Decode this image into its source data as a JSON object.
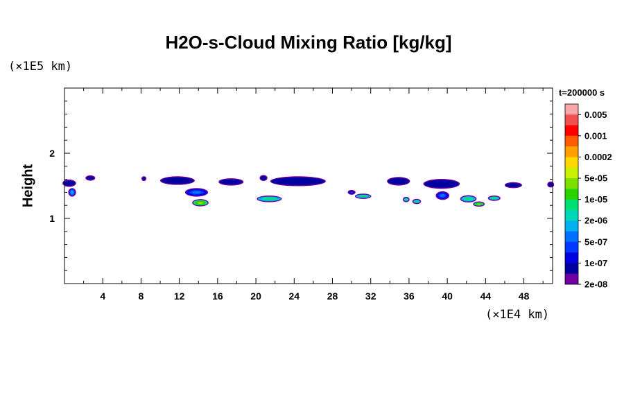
{
  "chart_data": {
    "type": "heatmap",
    "title": "H2O-s-Cloud Mixing Ratio [kg/kg]",
    "ylabel": "Height",
    "xlabel": "",
    "x_scale_label": "(×1E4 km)",
    "y_scale_label": "(×1E5 km)",
    "time_label": "t=200000 s",
    "xlim": [
      0,
      51
    ],
    "ylim": [
      0,
      3
    ],
    "x_ticks": [
      "4",
      "8",
      "12",
      "16",
      "20",
      "24",
      "28",
      "32",
      "36",
      "40",
      "44",
      "48"
    ],
    "y_ticks": [
      "1",
      "2"
    ],
    "colorbar": {
      "labels": [
        "0.005",
        "0.001",
        "0.0002",
        "5e-05",
        "1e-05",
        "2e-06",
        "5e-07",
        "1e-07",
        "2e-08"
      ],
      "colors": [
        "#f7a7a7",
        "#f05050",
        "#ff0000",
        "#ff5a00",
        "#ffa000",
        "#ffd800",
        "#c8f000",
        "#7ee000",
        "#2ad200",
        "#00e070",
        "#00d8b8",
        "#00b0f0",
        "#0070ff",
        "#0038ff",
        "#0000e0",
        "#0000a0",
        "#7000a0"
      ]
    },
    "cloud_cells": [
      {
        "x": 0.5,
        "y": 1.54,
        "w": 1.2,
        "h": 0.08,
        "level": "1e-07"
      },
      {
        "x": 0.8,
        "y": 1.4,
        "w": 0.6,
        "h": 0.1,
        "level": "2e-06"
      },
      {
        "x": 2.7,
        "y": 1.62,
        "w": 0.8,
        "h": 0.05,
        "level": "1e-07"
      },
      {
        "x": 8.3,
        "y": 1.61,
        "w": 0.3,
        "h": 0.03,
        "level": "2e-08"
      },
      {
        "x": 11.8,
        "y": 1.58,
        "w": 3.4,
        "h": 0.1,
        "level": "1e-07"
      },
      {
        "x": 13.8,
        "y": 1.4,
        "w": 2.2,
        "h": 0.1,
        "level": "1e-06"
      },
      {
        "x": 14.2,
        "y": 1.24,
        "w": 1.5,
        "h": 0.08,
        "level": "5e-05"
      },
      {
        "x": 17.4,
        "y": 1.56,
        "w": 2.4,
        "h": 0.08,
        "level": "1e-07"
      },
      {
        "x": 20.8,
        "y": 1.62,
        "w": 0.6,
        "h": 0.06,
        "level": "1e-07"
      },
      {
        "x": 21.4,
        "y": 1.3,
        "w": 2.4,
        "h": 0.07,
        "level": "1e-05"
      },
      {
        "x": 24.4,
        "y": 1.57,
        "w": 5.6,
        "h": 0.12,
        "level": "1e-07"
      },
      {
        "x": 30.0,
        "y": 1.4,
        "w": 0.6,
        "h": 0.04,
        "level": "5e-07"
      },
      {
        "x": 31.2,
        "y": 1.34,
        "w": 1.5,
        "h": 0.05,
        "level": "1e-05"
      },
      {
        "x": 34.9,
        "y": 1.57,
        "w": 2.2,
        "h": 0.1,
        "level": "1e-07"
      },
      {
        "x": 35.7,
        "y": 1.29,
        "w": 0.5,
        "h": 0.05,
        "level": "1e-05"
      },
      {
        "x": 36.8,
        "y": 1.26,
        "w": 0.7,
        "h": 0.05,
        "level": "1e-05"
      },
      {
        "x": 39.4,
        "y": 1.53,
        "w": 3.6,
        "h": 0.12,
        "level": "1e-07"
      },
      {
        "x": 39.5,
        "y": 1.35,
        "w": 1.2,
        "h": 0.1,
        "level": "5e-06"
      },
      {
        "x": 42.2,
        "y": 1.3,
        "w": 1.5,
        "h": 0.08,
        "level": "1e-05"
      },
      {
        "x": 43.3,
        "y": 1.22,
        "w": 1.0,
        "h": 0.05,
        "level": "5e-05"
      },
      {
        "x": 44.9,
        "y": 1.31,
        "w": 1.1,
        "h": 0.05,
        "level": "1e-05"
      },
      {
        "x": 46.9,
        "y": 1.51,
        "w": 1.6,
        "h": 0.06,
        "level": "1e-07"
      },
      {
        "x": 50.8,
        "y": 1.52,
        "w": 0.5,
        "h": 0.06,
        "level": "1e-07"
      }
    ]
  }
}
